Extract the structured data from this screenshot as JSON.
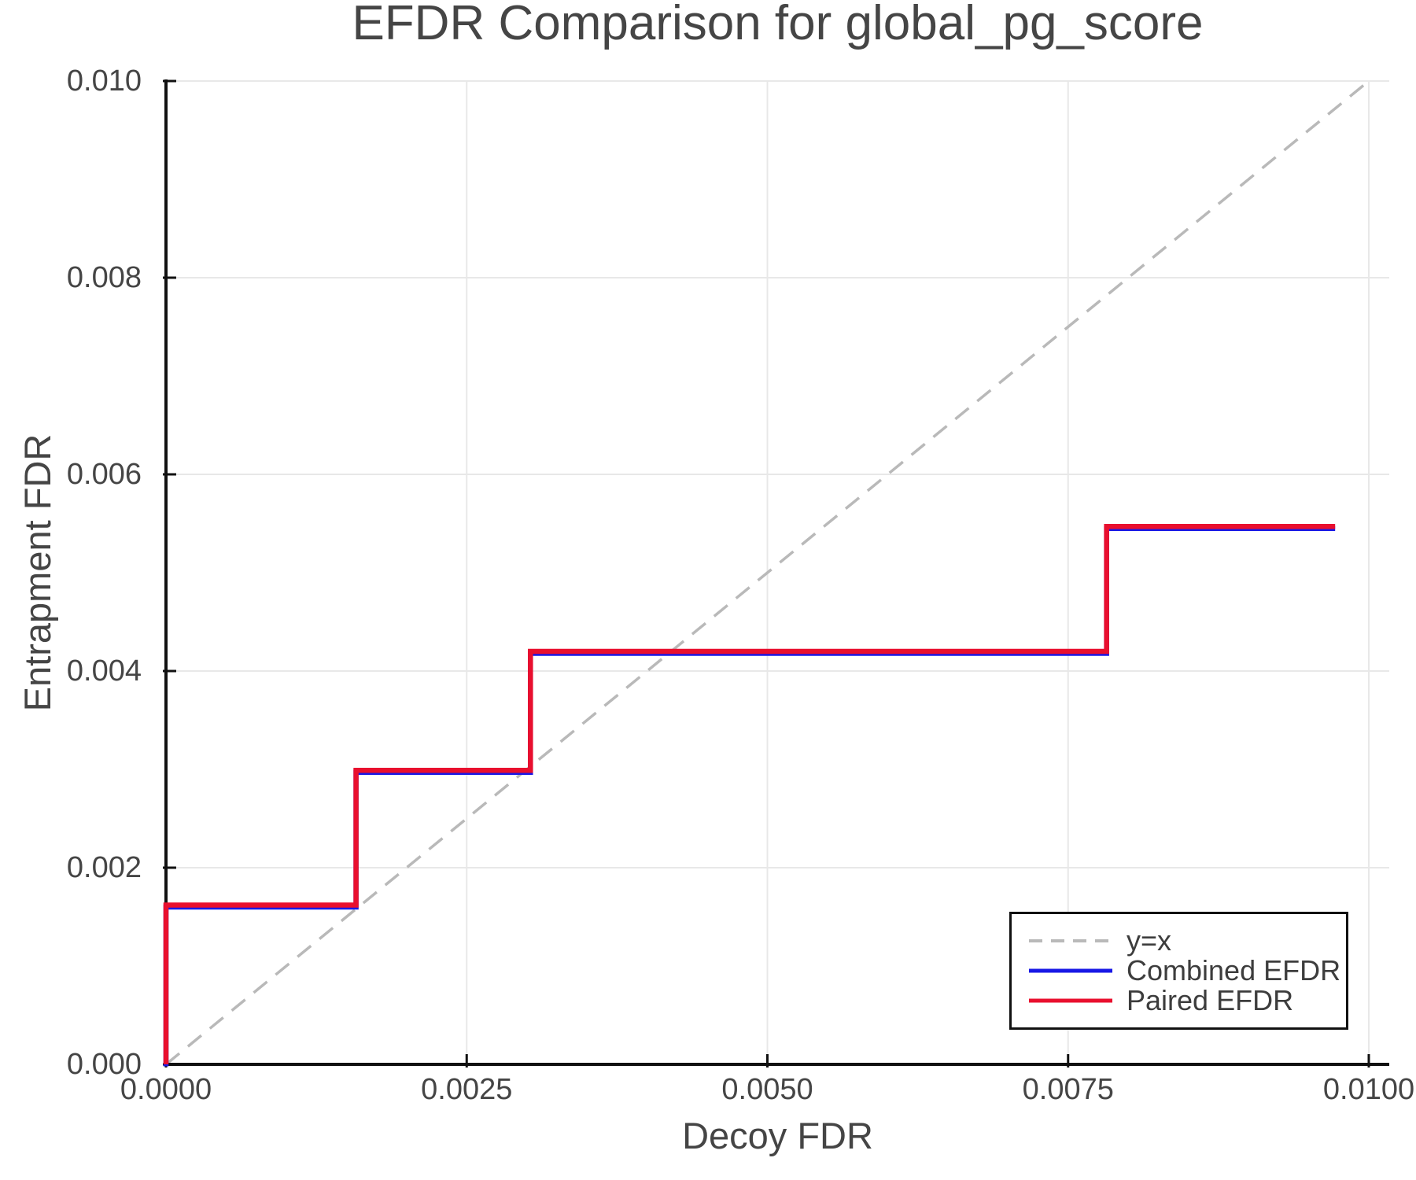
{
  "chart_data": {
    "type": "line",
    "subtype": "step",
    "title": "EFDR Comparison for global_pg_score",
    "xlabel": "Decoy FDR",
    "ylabel": "Entrapment FDR",
    "xlim": [
      0.0,
      0.01
    ],
    "ylim": [
      0.0,
      0.01
    ],
    "grid": true,
    "legend_position": "lower right",
    "xticks": {
      "values": [
        0.0,
        0.0025,
        0.005,
        0.0075,
        0.01
      ],
      "labels": [
        "0.0000",
        "0.0025",
        "0.0050",
        "0.0075",
        "0.0100"
      ]
    },
    "yticks": {
      "values": [
        0.0,
        0.002,
        0.004,
        0.006,
        0.008,
        0.01
      ],
      "labels": [
        "0.000",
        "0.002",
        "0.004",
        "0.006",
        "0.008",
        "0.010"
      ]
    },
    "reference_line": {
      "label": "y=x",
      "from": [
        0.0,
        0.0
      ],
      "to": [
        0.01,
        0.01
      ],
      "style": "dashed",
      "color": "#b9b9b9"
    },
    "series": [
      {
        "name": "Combined EFDR",
        "color": "#1818e6",
        "points": [
          [
            0.0,
            0.0
          ],
          [
            0.0,
            0.00162
          ],
          [
            0.00158,
            0.00162
          ],
          [
            0.00158,
            0.00299
          ],
          [
            0.00303,
            0.00299
          ],
          [
            0.00303,
            0.0042
          ],
          [
            0.00782,
            0.0042
          ],
          [
            0.00782,
            0.00547
          ],
          [
            0.00972,
            0.00547
          ]
        ]
      },
      {
        "name": "Paired EFDR",
        "color": "#e90f2e",
        "points": [
          [
            0.0,
            0.0
          ],
          [
            0.0,
            0.00162
          ],
          [
            0.00158,
            0.00162
          ],
          [
            0.00158,
            0.00299
          ],
          [
            0.00303,
            0.00299
          ],
          [
            0.00303,
            0.0042
          ],
          [
            0.00782,
            0.0042
          ],
          [
            0.00782,
            0.00547
          ],
          [
            0.00972,
            0.00547
          ]
        ]
      }
    ]
  },
  "colors": {
    "spine": "#111111",
    "grid": "#e8e8e8",
    "tick": "#111111",
    "text": "#454545",
    "legend_text": "#3d3d3d"
  }
}
